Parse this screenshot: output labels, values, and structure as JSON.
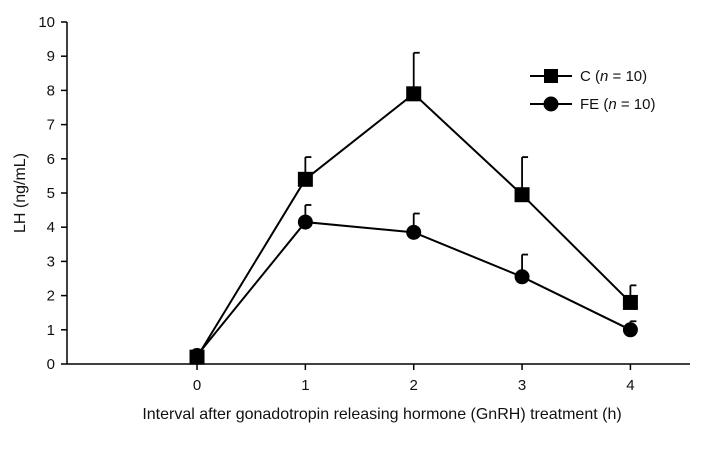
{
  "chart_data": {
    "type": "line",
    "title": "",
    "xlabel": "Interval after gonadotropin releasing hormone (GnRH) treatment (h)",
    "ylabel": "LH (ng/mL)",
    "x": [
      0,
      1,
      2,
      3,
      4
    ],
    "x_ticks": [
      "0",
      "1",
      "2",
      "3",
      "4"
    ],
    "y_ticks": [
      "0",
      "1",
      "2",
      "3",
      "4",
      "5",
      "6",
      "7",
      "8",
      "9",
      "10"
    ],
    "xlim": [
      -1.2,
      4.55
    ],
    "ylim": [
      0,
      10
    ],
    "grid": false,
    "legend_position": "top-right",
    "series": [
      {
        "name": "C (n = 10)",
        "name_prefix": "C (",
        "name_italic": "n",
        "name_suffix": " = 10)",
        "marker": "square",
        "values": [
          0.2,
          5.4,
          7.9,
          4.95,
          1.8
        ],
        "errors": [
          0.1,
          0.65,
          1.2,
          1.1,
          0.5
        ]
      },
      {
        "name": "FE (n = 10)",
        "name_prefix": "FE (",
        "name_italic": "n",
        "name_suffix": " = 10)",
        "marker": "circle",
        "values": [
          0.25,
          4.15,
          3.85,
          2.55,
          1.0
        ],
        "errors": [
          0.1,
          0.5,
          0.55,
          0.65,
          0.25
        ]
      }
    ]
  }
}
